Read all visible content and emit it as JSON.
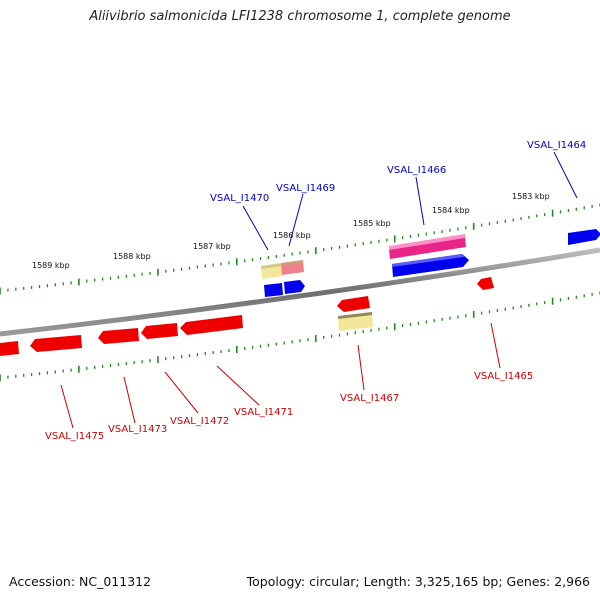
{
  "title": "Aliivibrio salmonicida LFI1238 chromosome 1, complete genome",
  "footer": {
    "accession": "Accession: NC_011312",
    "summary": "Topology: circular; Length: 3,325,165 bp; Genes: 2,966"
  },
  "colors": {
    "backbone": "#7a7a7a",
    "tick": "#1f8a1f",
    "cds_forward": "#0000ee",
    "cds_reverse": "#ee0000",
    "pseudo": "#f3e89a",
    "rna": "#ee2288",
    "label_forward": "#0000cc",
    "label_reverse": "#cc0000"
  },
  "kbp_labels": [
    "1589 kbp",
    "1588 kbp",
    "1587 kbp",
    "1586 kbp",
    "1585 kbp",
    "1584 kbp",
    "1583 kbp"
  ],
  "forward_labels": [
    "VSAL_I1470",
    "VSAL_I1469",
    "VSAL_I1466",
    "VSAL_I1464"
  ],
  "reverse_labels": [
    "VSAL_I1475",
    "VSAL_I1473",
    "VSAL_I1472",
    "VSAL_I1471",
    "VSAL_I1467",
    "VSAL_I1465"
  ]
}
